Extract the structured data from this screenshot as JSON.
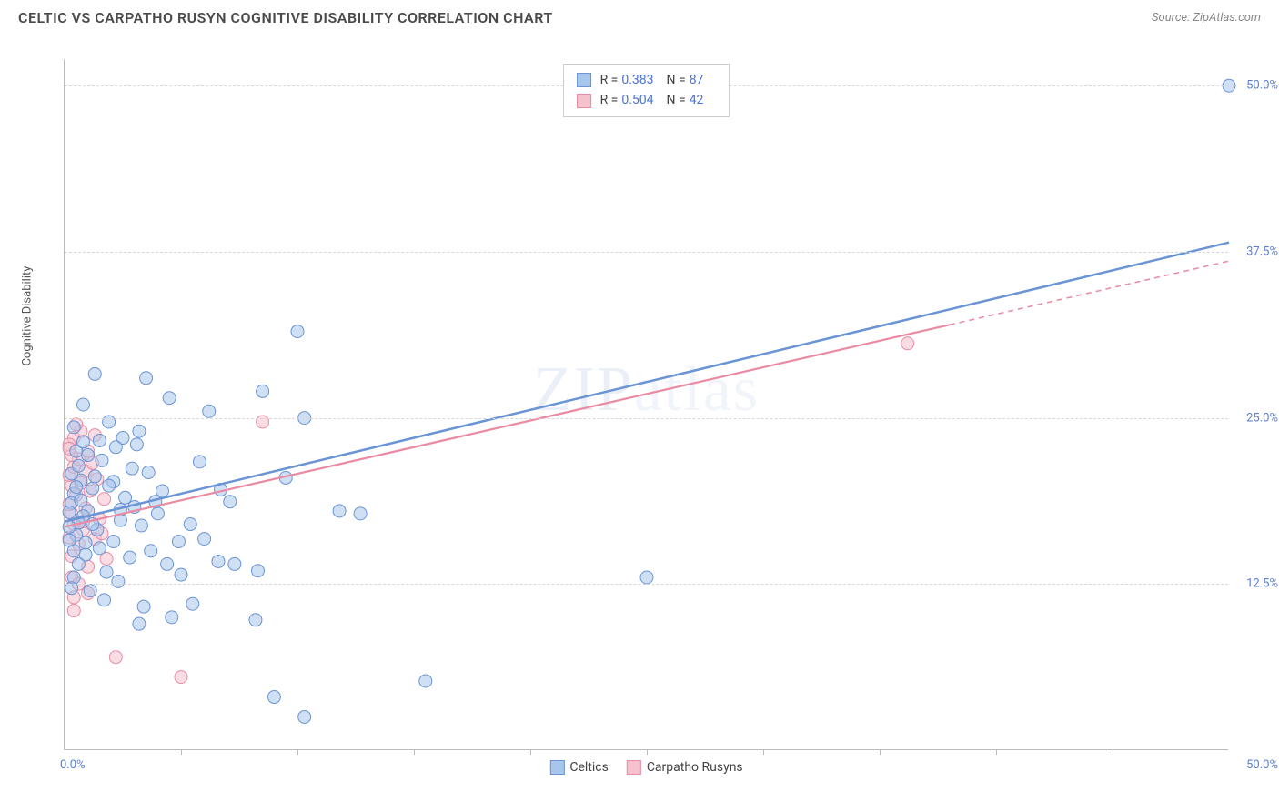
{
  "header": {
    "title": "CELTIC VS CARPATHO RUSYN COGNITIVE DISABILITY CORRELATION CHART",
    "source_label": "Source: ZipAtlas.com"
  },
  "chart": {
    "type": "scatter",
    "y_axis_label": "Cognitive Disability",
    "watermark": "ZIPatlas",
    "xlim": [
      0,
      50
    ],
    "ylim": [
      0,
      52
    ],
    "x_origin_label": "0.0%",
    "x_max_label": "50.0%",
    "y_ticks": [
      {
        "v": 12.5,
        "label": "12.5%"
      },
      {
        "v": 25.0,
        "label": "25.0%"
      },
      {
        "v": 37.5,
        "label": "37.5%"
      },
      {
        "v": 50.0,
        "label": "50.0%"
      }
    ],
    "x_tick_positions": [
      5,
      10,
      15,
      20,
      25,
      30,
      35,
      40,
      45
    ],
    "grid_color": "#d8d8d8",
    "axis_color": "#bbbbbb",
    "background_color": "#ffffff",
    "marker_radius": 7,
    "marker_opacity": 0.55,
    "series": [
      {
        "name": "Celtics",
        "color_fill": "#a8c5eb",
        "color_stroke": "#6a94d4",
        "R": "0.383",
        "N": "87",
        "trend": {
          "x1": 0,
          "y1": 17.2,
          "x2": 50,
          "y2": 38.2,
          "solid_until_x": 50,
          "stroke_width": 2.5
        },
        "points": [
          [
            50,
            50
          ],
          [
            10,
            31.5
          ],
          [
            9.5,
            20.5
          ],
          [
            4.5,
            26.5
          ],
          [
            3.5,
            28
          ],
          [
            6.2,
            25.5
          ],
          [
            8.5,
            27
          ],
          [
            10.3,
            25
          ],
          [
            3.2,
            24
          ],
          [
            5.8,
            21.7
          ],
          [
            2.5,
            23.5
          ],
          [
            1.3,
            28.3
          ],
          [
            0.8,
            26
          ],
          [
            0.5,
            22.5
          ],
          [
            0.7,
            20.3
          ],
          [
            1.6,
            21.8
          ],
          [
            2.9,
            21.2
          ],
          [
            2.1,
            20.2
          ],
          [
            3.6,
            20.9
          ],
          [
            1.2,
            19.7
          ],
          [
            0.4,
            19.3
          ],
          [
            0.3,
            18.6
          ],
          [
            1.9,
            19.9
          ],
          [
            2.6,
            19.0
          ],
          [
            4.2,
            19.5
          ],
          [
            6.7,
            19.6
          ],
          [
            3.0,
            18.3
          ],
          [
            1.0,
            18.0
          ],
          [
            0.8,
            17.6
          ],
          [
            0.6,
            17.1
          ],
          [
            0.2,
            17.9
          ],
          [
            0.5,
            16.2
          ],
          [
            1.4,
            16.6
          ],
          [
            2.4,
            17.3
          ],
          [
            3.3,
            16.9
          ],
          [
            4.0,
            17.8
          ],
          [
            5.4,
            17.0
          ],
          [
            7.1,
            18.7
          ],
          [
            11.8,
            18.0
          ],
          [
            12.7,
            17.8
          ],
          [
            25,
            13.0
          ],
          [
            15.5,
            5.2
          ],
          [
            10.3,
            2.5
          ],
          [
            9.0,
            4.0
          ],
          [
            8.2,
            9.8
          ],
          [
            5.5,
            11.0
          ],
          [
            4.6,
            10.0
          ],
          [
            3.4,
            10.8
          ],
          [
            3.2,
            9.5
          ],
          [
            2.3,
            12.7
          ],
          [
            1.8,
            13.4
          ],
          [
            2.8,
            14.5
          ],
          [
            4.4,
            14.0
          ],
          [
            5.0,
            13.2
          ],
          [
            6.6,
            14.2
          ],
          [
            7.3,
            14.0
          ],
          [
            8.3,
            13.5
          ],
          [
            0.9,
            14.7
          ],
          [
            0.6,
            14.0
          ],
          [
            0.4,
            13.0
          ],
          [
            0.3,
            12.2
          ],
          [
            1.1,
            12.0
          ],
          [
            1.7,
            11.3
          ],
          [
            1.5,
            15.2
          ],
          [
            0.9,
            15.6
          ],
          [
            0.4,
            15.0
          ],
          [
            2.1,
            15.7
          ],
          [
            3.7,
            15.0
          ],
          [
            4.9,
            15.7
          ],
          [
            6.0,
            15.9
          ],
          [
            0.3,
            20.8
          ],
          [
            0.6,
            21.4
          ],
          [
            1.0,
            22.2
          ],
          [
            0.2,
            16.8
          ],
          [
            0.7,
            18.8
          ],
          [
            2.2,
            22.8
          ],
          [
            1.5,
            23.3
          ],
          [
            0.8,
            23.2
          ],
          [
            0.4,
            24.3
          ],
          [
            1.9,
            24.7
          ],
          [
            3.1,
            23.0
          ],
          [
            1.2,
            17.0
          ],
          [
            2.4,
            18.1
          ],
          [
            3.9,
            18.7
          ],
          [
            0.5,
            19.8
          ],
          [
            1.3,
            20.6
          ],
          [
            0.2,
            15.8
          ]
        ]
      },
      {
        "name": "Carpatho Rusyns",
        "color_fill": "#f5c1cd",
        "color_stroke": "#e98ba3",
        "R": "0.504",
        "N": "42",
        "trend": {
          "x1": 0,
          "y1": 16.8,
          "x2": 50,
          "y2": 36.8,
          "solid_until_x": 38,
          "stroke_width": 2.2
        },
        "points": [
          [
            36.2,
            30.6
          ],
          [
            8.5,
            24.7
          ],
          [
            5.0,
            5.5
          ],
          [
            2.2,
            7.0
          ],
          [
            0.4,
            11.5
          ],
          [
            1.0,
            13.8
          ],
          [
            1.8,
            14.4
          ],
          [
            0.3,
            14.6
          ],
          [
            0.6,
            15.5
          ],
          [
            1.3,
            15.9
          ],
          [
            0.2,
            16.0
          ],
          [
            0.8,
            16.6
          ],
          [
            0.4,
            17.0
          ],
          [
            1.5,
            17.4
          ],
          [
            0.3,
            17.8
          ],
          [
            0.9,
            18.2
          ],
          [
            0.2,
            18.5
          ],
          [
            1.7,
            18.9
          ],
          [
            0.5,
            19.2
          ],
          [
            1.1,
            19.5
          ],
          [
            0.3,
            19.9
          ],
          [
            0.7,
            20.1
          ],
          [
            1.4,
            20.4
          ],
          [
            0.2,
            20.7
          ],
          [
            0.9,
            21.0
          ],
          [
            0.4,
            21.3
          ],
          [
            1.2,
            21.6
          ],
          [
            0.6,
            21.9
          ],
          [
            0.3,
            22.2
          ],
          [
            1.0,
            22.5
          ],
          [
            0.4,
            23.5
          ],
          [
            0.7,
            24.0
          ],
          [
            1.3,
            23.7
          ],
          [
            0.2,
            23.0
          ],
          [
            0.5,
            24.5
          ],
          [
            0.8,
            17.2
          ],
          [
            1.6,
            16.3
          ],
          [
            0.3,
            13.0
          ],
          [
            0.6,
            12.5
          ],
          [
            1.0,
            11.8
          ],
          [
            0.4,
            10.5
          ],
          [
            0.2,
            22.7
          ]
        ]
      }
    ],
    "legend_top_labels": {
      "R": "R =",
      "N": "N ="
    },
    "legend_bottom": [
      {
        "label": "Celtics",
        "fill": "#a8c5eb",
        "stroke": "#6a94d4"
      },
      {
        "label": "Carpatho Rusyns",
        "fill": "#f5c1cd",
        "stroke": "#e98ba3"
      }
    ]
  }
}
